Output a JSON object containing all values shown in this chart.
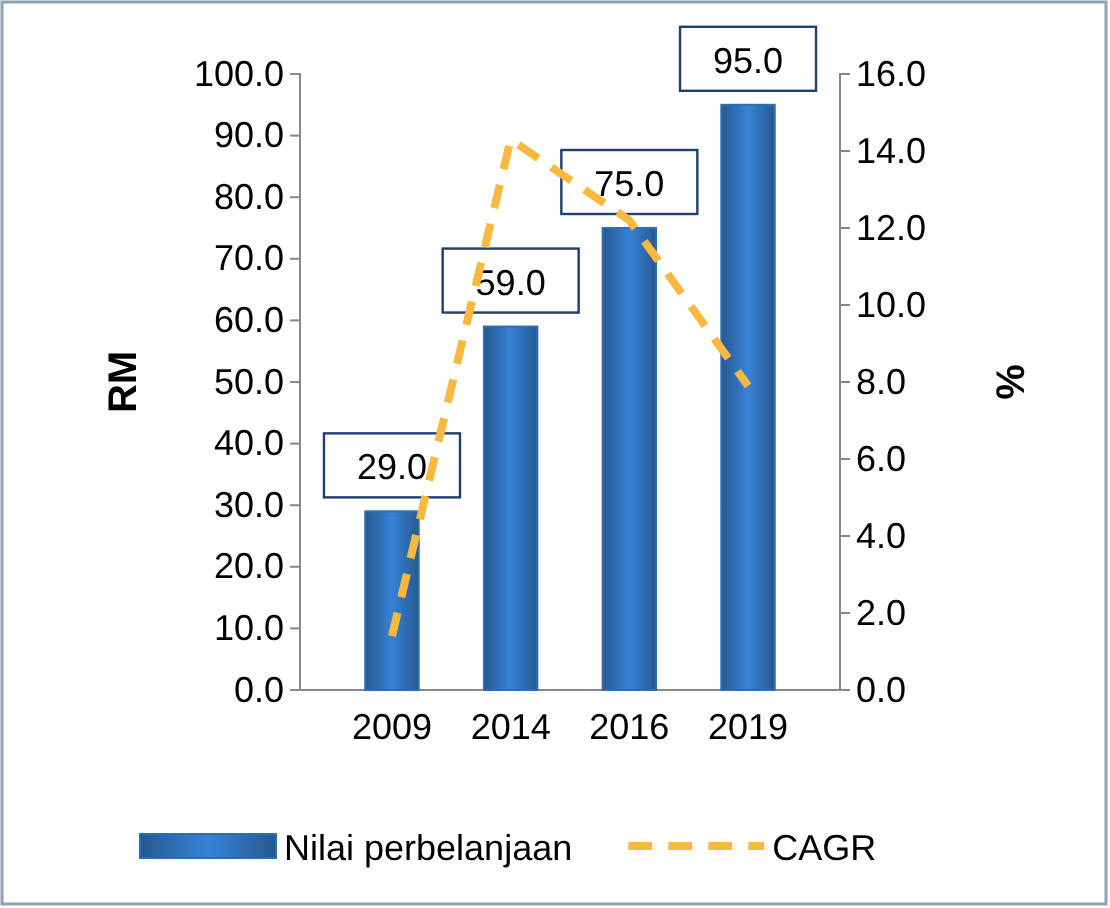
{
  "chart_data": {
    "type": "bar",
    "categories": [
      "2009",
      "2014",
      "2016",
      "2019"
    ],
    "ylabel": "RM",
    "y2label": "%",
    "ylim": [
      0,
      100
    ],
    "yticks": [
      {
        "value": 0,
        "label": "0.0"
      },
      {
        "value": 10,
        "label": "10.0"
      },
      {
        "value": 20,
        "label": "20.0"
      },
      {
        "value": 30,
        "label": "30.0"
      },
      {
        "value": 40,
        "label": "40.0"
      },
      {
        "value": 50,
        "label": "50.0"
      },
      {
        "value": 60,
        "label": "60.0"
      },
      {
        "value": 70,
        "label": "70.0"
      },
      {
        "value": 80,
        "label": "80.0"
      },
      {
        "value": 90,
        "label": "90.0"
      },
      {
        "value": 100,
        "label": "100.0"
      }
    ],
    "y2lim": [
      0,
      16
    ],
    "y2ticks": [
      {
        "value": 0,
        "label": "0.0"
      },
      {
        "value": 2,
        "label": "2.0"
      },
      {
        "value": 4,
        "label": "4.0"
      },
      {
        "value": 6,
        "label": "6.0"
      },
      {
        "value": 8,
        "label": "8.0"
      },
      {
        "value": 10,
        "label": "10.0"
      },
      {
        "value": 12,
        "label": "12.0"
      },
      {
        "value": 14,
        "label": "14.0"
      },
      {
        "value": 16,
        "label": "16.0"
      }
    ],
    "series": [
      {
        "name": "Nilai perbelanjaan",
        "color": "#2f6db3",
        "values": [
          29,
          59,
          75,
          95
        ],
        "value_labels": [
          "29.0",
          "59.0",
          "75.0",
          "95.0"
        ]
      },
      {
        "name": "CAGR",
        "type": "line",
        "axis": "y2",
        "color": "#f9b840",
        "line_style": "dashed",
        "marker": "none",
        "values": [
          1.4,
          14.3,
          12.2,
          7.9
        ]
      }
    ],
    "grid": false,
    "legend": "bottom"
  }
}
